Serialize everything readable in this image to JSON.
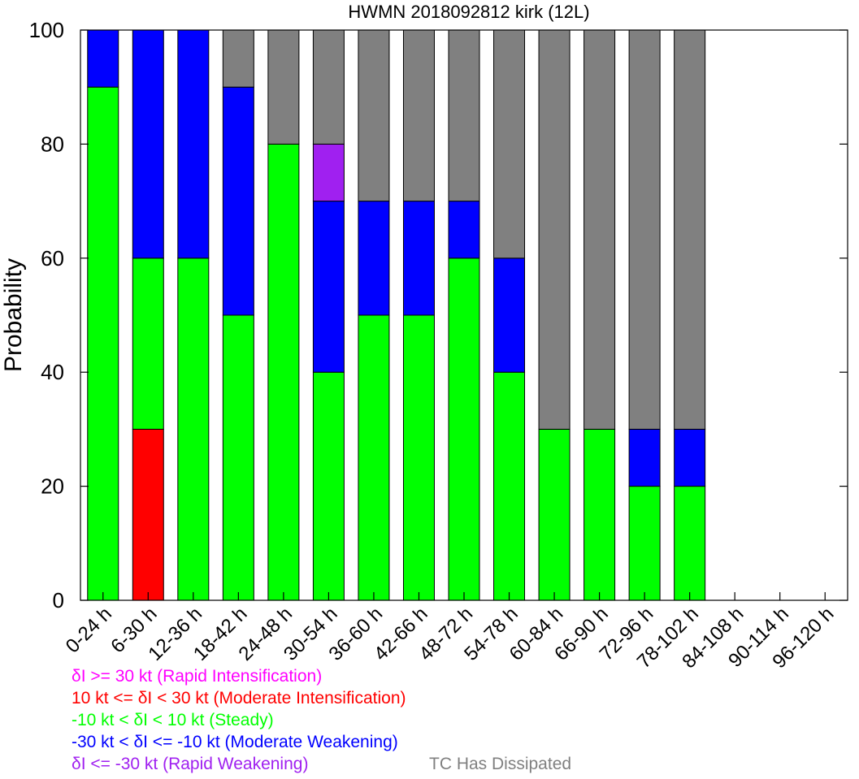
{
  "chart_data": {
    "type": "bar",
    "stacked": true,
    "title": "HWMN 2018092812 kirk (12L)",
    "ylabel": "Probability",
    "xlabel": "",
    "ylim": [
      0,
      100
    ],
    "yticks": [
      0,
      20,
      40,
      60,
      80,
      100
    ],
    "grid": false,
    "categories": [
      "0-24 h",
      "6-30 h",
      "12-36 h",
      "18-42 h",
      "24-48 h",
      "30-54 h",
      "36-60 h",
      "42-66 h",
      "48-72 h",
      "54-78 h",
      "60-84 h",
      "66-90 h",
      "72-96 h",
      "78-102 h",
      "84-108 h",
      "90-114 h",
      "96-120 h"
    ],
    "series": [
      {
        "key": "moderate-intensification",
        "color": "#ff0000",
        "values": [
          0,
          30,
          0,
          0,
          0,
          0,
          0,
          0,
          0,
          0,
          0,
          0,
          0,
          0,
          0,
          0,
          0
        ]
      },
      {
        "key": "steady",
        "color": "#00ff00",
        "values": [
          90,
          30,
          60,
          50,
          80,
          40,
          50,
          50,
          60,
          40,
          30,
          30,
          20,
          20,
          0,
          0,
          0
        ]
      },
      {
        "key": "moderate-weakening",
        "color": "#0000ff",
        "values": [
          10,
          40,
          40,
          40,
          0,
          30,
          20,
          20,
          10,
          20,
          0,
          0,
          10,
          10,
          0,
          0,
          0
        ]
      },
      {
        "key": "rapid-weakening",
        "color": "#a020f0",
        "values": [
          0,
          0,
          0,
          0,
          0,
          10,
          0,
          0,
          0,
          0,
          0,
          0,
          0,
          0,
          0,
          0,
          0
        ]
      },
      {
        "key": "dissipated",
        "color": "#808080",
        "values": [
          0,
          0,
          0,
          10,
          20,
          20,
          30,
          30,
          30,
          40,
          70,
          70,
          70,
          70,
          0,
          0,
          0
        ]
      }
    ]
  },
  "legend": [
    {
      "key": "rapid-intensification",
      "text": "δI >= 30 kt (Rapid Intensification)",
      "color": "#ff00ff"
    },
    {
      "key": "moderate-intensification",
      "text": "10 kt <= δI < 30 kt (Moderate Intensification)",
      "color": "#ff0000"
    },
    {
      "key": "steady",
      "text": "-10 kt < δI < 10 kt (Steady)",
      "color": "#00ff00"
    },
    {
      "key": "moderate-weakening",
      "text": "-30 kt < δI <= -10 kt (Moderate Weakening)",
      "color": "#0000ff"
    },
    {
      "key": "rapid-weakening",
      "text": "δI <= -30 kt (Rapid Weakening)",
      "color": "#a020f0"
    }
  ],
  "legend_extra": {
    "text": "TC Has Dissipated",
    "color": "#808080"
  }
}
